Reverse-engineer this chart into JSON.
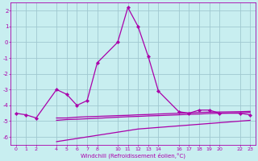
{
  "xlabel": "Windchill (Refroidissement éolien,°C)",
  "bg_color": "#c8eef0",
  "grid_color": "#a0c8d0",
  "line_color": "#aa00aa",
  "xlim": [
    -0.5,
    23.5
  ],
  "ylim": [
    -6.5,
    2.5
  ],
  "yticks": [
    2,
    1,
    0,
    -1,
    -2,
    -3,
    -4,
    -5,
    -6
  ],
  "xticks": [
    0,
    1,
    2,
    4,
    5,
    6,
    7,
    8,
    10,
    11,
    12,
    13,
    14,
    16,
    17,
    18,
    19,
    20,
    22,
    23
  ],
  "main_x": [
    0,
    1,
    2,
    4,
    5,
    6,
    7,
    8,
    10,
    11,
    12,
    13,
    14,
    16,
    17,
    18,
    19,
    20,
    22,
    23
  ],
  "main_y": [
    -4.5,
    -4.6,
    -4.8,
    -3.0,
    -3.3,
    -4.0,
    -3.7,
    -1.3,
    0.0,
    2.2,
    1.0,
    -0.9,
    -3.1,
    -4.4,
    -4.5,
    -4.3,
    -4.3,
    -4.5,
    -4.5,
    -4.6
  ],
  "line2_x": [
    4,
    5,
    6,
    7,
    8,
    10,
    11,
    12,
    13,
    14,
    16,
    17,
    18,
    19,
    20,
    22,
    23
  ],
  "line2_y": [
    -4.8,
    -4.8,
    -4.75,
    -4.72,
    -4.7,
    -4.65,
    -4.63,
    -4.6,
    -4.58,
    -4.55,
    -4.5,
    -4.48,
    -4.45,
    -4.43,
    -4.42,
    -4.4,
    -4.38
  ],
  "line3_x": [
    4,
    5,
    6,
    7,
    8,
    10,
    11,
    12,
    13,
    14,
    16,
    17,
    18,
    19,
    20,
    22,
    23
  ],
  "line3_y": [
    -4.95,
    -4.9,
    -4.88,
    -4.85,
    -4.82,
    -4.75,
    -4.72,
    -4.7,
    -4.67,
    -4.65,
    -4.6,
    -4.57,
    -4.55,
    -4.52,
    -4.5,
    -4.47,
    -4.45
  ],
  "line4_x": [
    4,
    5,
    6,
    7,
    8,
    10,
    11,
    12,
    13,
    14,
    16,
    17,
    18,
    19,
    20,
    22,
    23
  ],
  "line4_y": [
    -6.3,
    -6.2,
    -6.1,
    -6.0,
    -5.9,
    -5.7,
    -5.6,
    -5.5,
    -5.45,
    -5.4,
    -5.3,
    -5.25,
    -5.2,
    -5.15,
    -5.1,
    -5.0,
    -4.95
  ]
}
